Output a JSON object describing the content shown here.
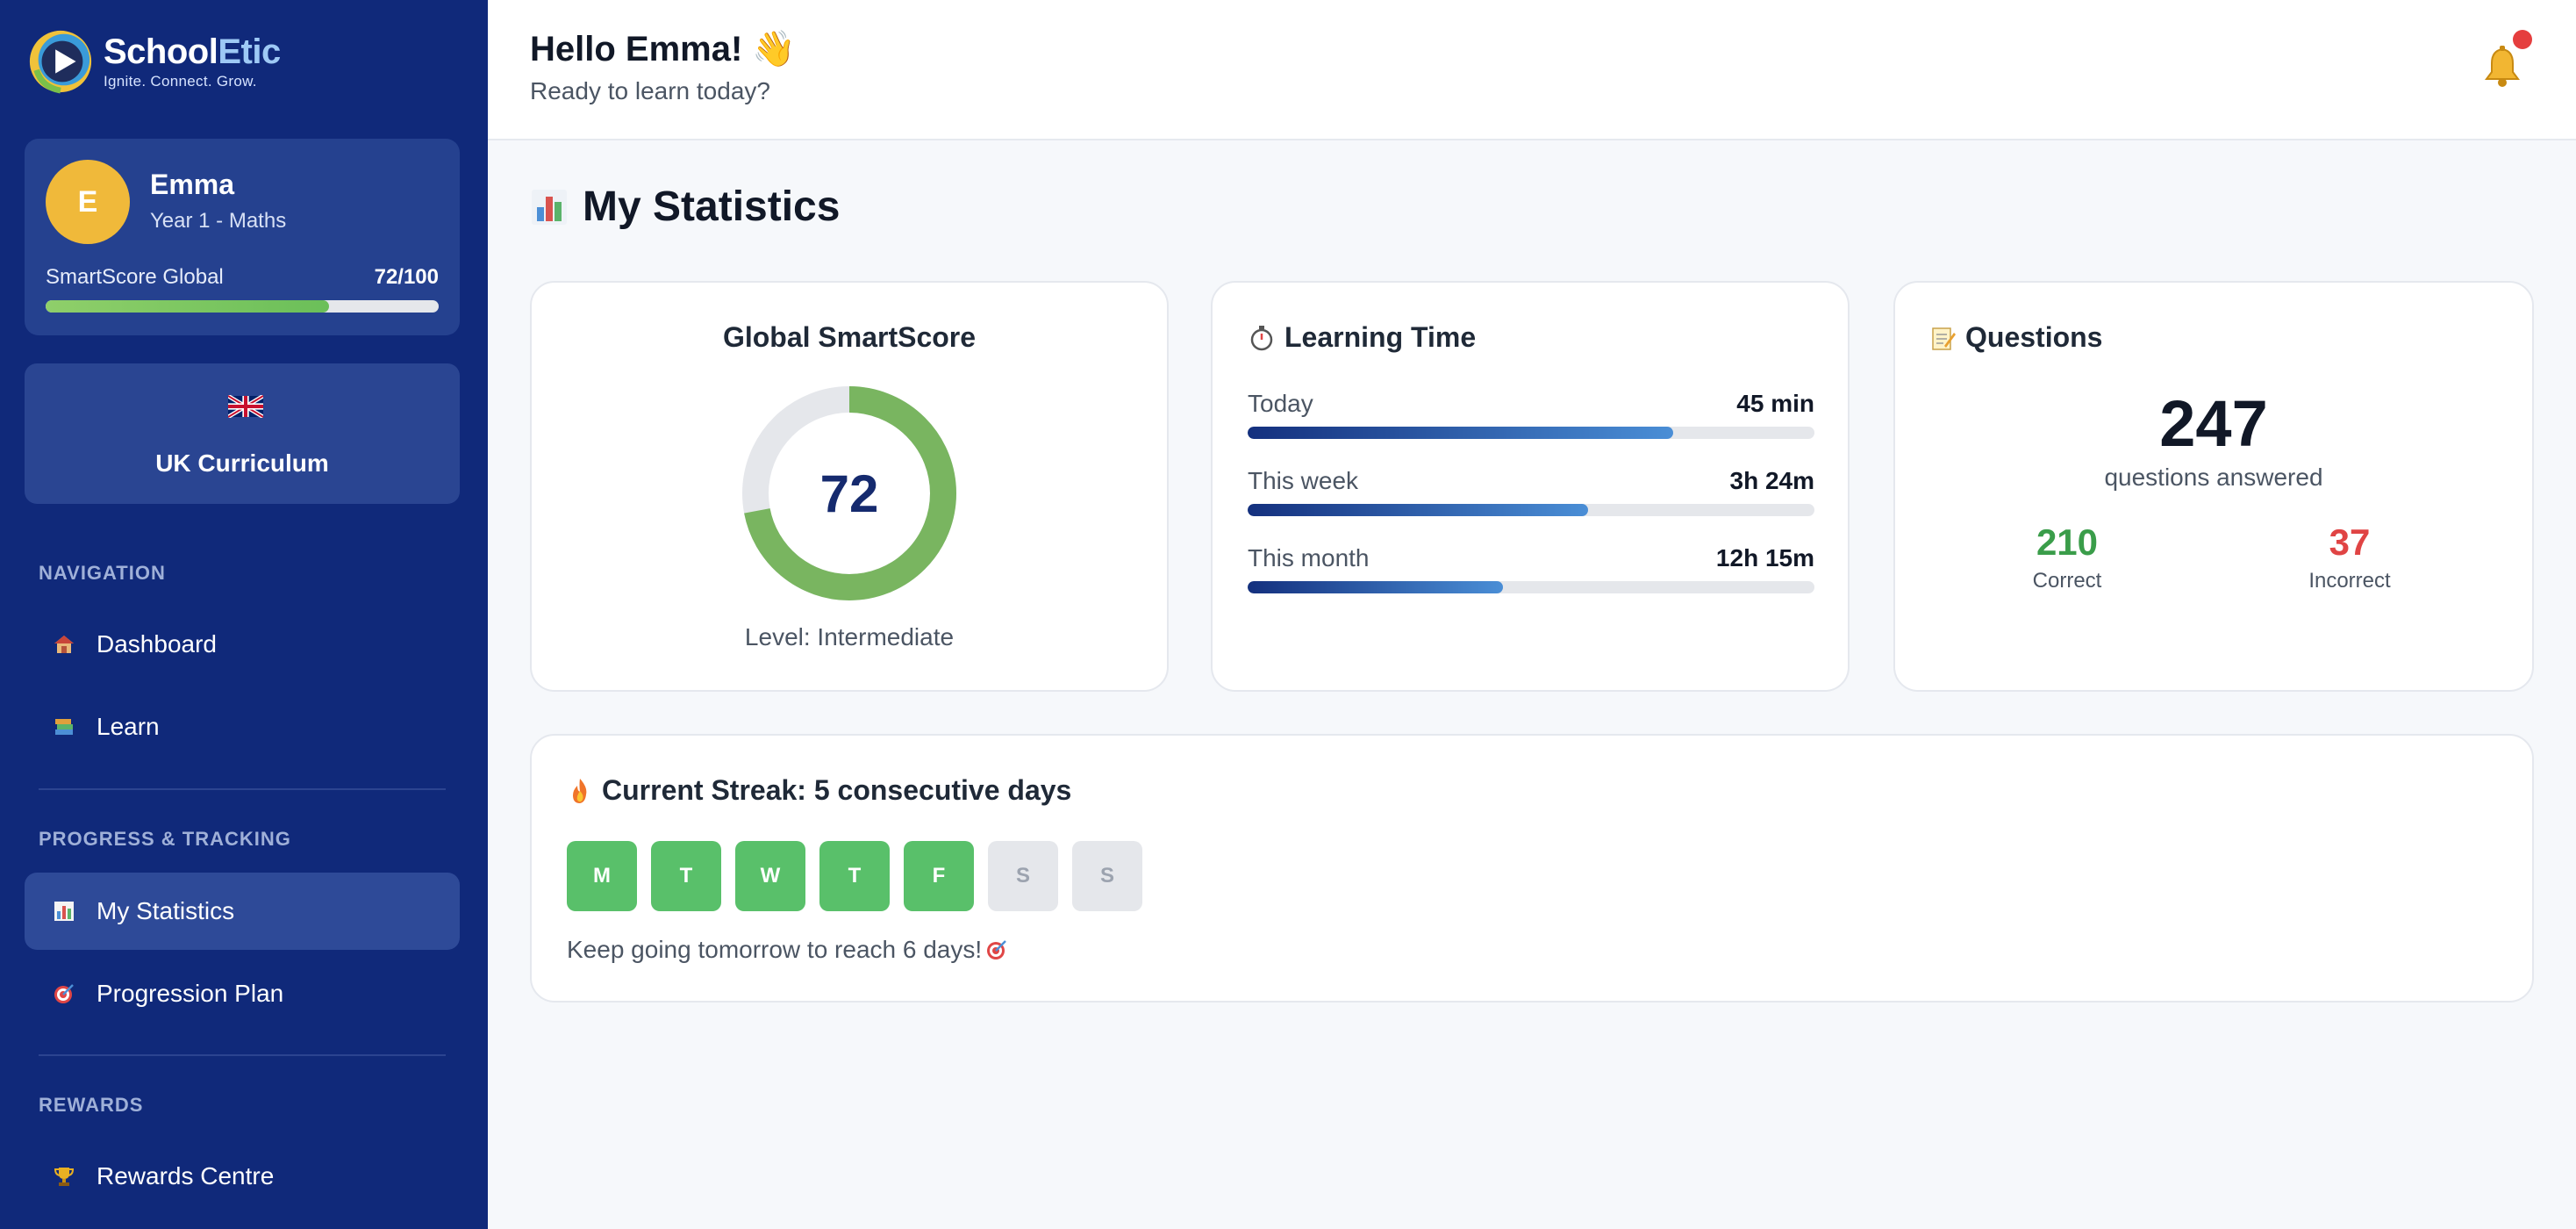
{
  "brand": {
    "name_part1": "School",
    "name_part2": "Etic",
    "tagline": "Ignite. Connect. Grow."
  },
  "profile": {
    "initial": "E",
    "name": "Emma",
    "subtitle": "Year 1 - Maths",
    "smartscore_label": "SmartScore Global",
    "smartscore_value": "72/100",
    "smartscore_fraction": 0.72
  },
  "curriculum": {
    "label": "UK Curriculum",
    "flag_icon": "uk-flag-icon"
  },
  "nav": {
    "section_navigation": "NAVIGATION",
    "dashboard": "Dashboard",
    "learn": "Learn",
    "section_progress": "PROGRESS & TRACKING",
    "statistics": "My Statistics",
    "progression": "Progression Plan",
    "section_rewards": "REWARDS",
    "rewards": "Rewards Centre"
  },
  "header": {
    "greeting": "Hello Emma! 👋",
    "subtitle": "Ready to learn today?"
  },
  "page": {
    "title": "My Statistics"
  },
  "smartscore_card": {
    "title": "Global SmartScore",
    "score": "72",
    "score_fraction": 0.72,
    "level": "Level: Intermediate"
  },
  "learning_time": {
    "title": "Learning Time",
    "rows": [
      {
        "label": "Today",
        "value": "45 min",
        "fraction": 0.75
      },
      {
        "label": "This week",
        "value": "3h 24m",
        "fraction": 0.6
      },
      {
        "label": "This month",
        "value": "12h 15m",
        "fraction": 0.45
      }
    ]
  },
  "questions": {
    "title": "Questions",
    "total": "247",
    "total_label": "questions answered",
    "correct": "210",
    "correct_label": "Correct",
    "incorrect": "37",
    "incorrect_label": "Incorrect"
  },
  "streak": {
    "title": "Current Streak: 5 consecutive days",
    "days": [
      {
        "letter": "M",
        "done": true
      },
      {
        "letter": "T",
        "done": true
      },
      {
        "letter": "W",
        "done": true
      },
      {
        "letter": "T",
        "done": true
      },
      {
        "letter": "F",
        "done": true
      },
      {
        "letter": "S",
        "done": false
      },
      {
        "letter": "S",
        "done": false
      }
    ],
    "note": "Keep going tomorrow to reach 6 days!"
  },
  "colors": {
    "sidebar": "#10297a",
    "accent_green": "#6bbf59",
    "correct": "#2f9e44",
    "incorrect": "#e03131",
    "alert": "#e53e3e"
  }
}
